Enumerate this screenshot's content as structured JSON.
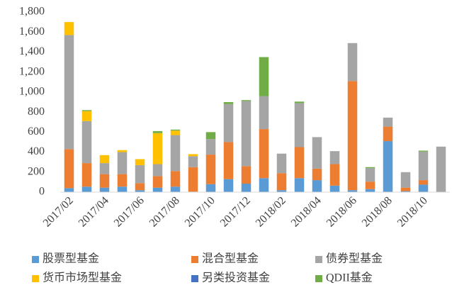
{
  "chart_data": {
    "type": "stacked_bar",
    "categories": [
      "2017/02",
      null,
      "2017/04",
      null,
      "2017/06",
      null,
      "2017/08",
      null,
      "2017/10",
      null,
      "2017/12",
      null,
      "2018/02",
      null,
      "2018/04",
      null,
      "2018/06",
      null,
      "2018/08",
      null,
      "2018/10",
      null
    ],
    "series": [
      {
        "name": "股票型基金",
        "color": "#5b9bd5",
        "values": [
          40,
          55,
          45,
          55,
          20,
          45,
          55,
          5,
          80,
          130,
          85,
          140,
          20,
          140,
          120,
          65,
          20,
          30,
          510,
          10,
          75,
          0
        ]
      },
      {
        "name": "混合型基金",
        "color": "#ed7d31",
        "values": [
          390,
          235,
          135,
          125,
          70,
          115,
          155,
          245,
          295,
          370,
          175,
          490,
          170,
          310,
          115,
          215,
          1090,
          75,
          145,
          35,
          45,
          0
        ]
      },
      {
        "name": "债券型基金",
        "color": "#a5a5a5",
        "values": [
          1140,
          420,
          110,
          220,
          180,
          120,
          360,
          110,
          155,
          380,
          650,
          330,
          195,
          440,
          315,
          130,
          380,
          135,
          90,
          155,
          285,
          455
        ]
      },
      {
        "name": "货币市场型基金",
        "color": "#ffc000",
        "values": [
          130,
          100,
          80,
          20,
          60,
          310,
          45,
          20,
          0,
          0,
          0,
          0,
          0,
          0,
          0,
          0,
          0,
          0,
          0,
          0,
          0,
          0
        ]
      },
      {
        "name": "另类投资基金",
        "color": "#4472c4",
        "values": [
          0,
          0,
          0,
          0,
          0,
          0,
          0,
          0,
          0,
          0,
          0,
          0,
          0,
          0,
          0,
          0,
          0,
          0,
          0,
          0,
          0,
          0
        ]
      },
      {
        "name": "QDII基金",
        "color": "#70ad47",
        "values": [
          0,
          10,
          0,
          0,
          0,
          20,
          10,
          0,
          70,
          20,
          10,
          390,
          0,
          15,
          0,
          0,
          0,
          10,
          0,
          0,
          10,
          0
        ]
      }
    ],
    "ylim": [
      0,
      1800
    ],
    "yticks": [
      0,
      200,
      400,
      600,
      800,
      {
        "value": 1000,
        "label": "1,000"
      },
      {
        "value": 1200,
        "label": "1,200"
      },
      {
        "value": 1400,
        "label": "1,400"
      },
      {
        "value": 1600,
        "label": "1,600"
      },
      {
        "value": 1800,
        "label": "1,800"
      }
    ],
    "grid": false
  }
}
